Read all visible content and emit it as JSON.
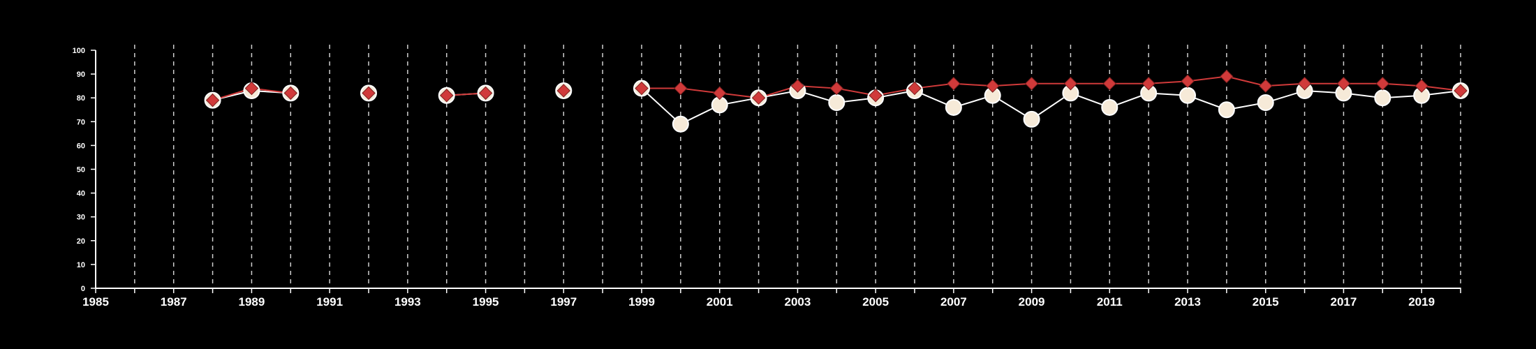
{
  "chart_data": {
    "type": "line",
    "title": "",
    "xlabel": "",
    "ylabel": "",
    "xlim": [
      1985,
      2020
    ],
    "ylim": [
      0,
      100
    ],
    "x_ticks": [
      1985,
      1986,
      1987,
      1988,
      1989,
      1990,
      1991,
      1992,
      1993,
      1994,
      1995,
      1996,
      1997,
      1998,
      1999,
      2000,
      2001,
      2002,
      2003,
      2004,
      2005,
      2006,
      2007,
      2008,
      2009,
      2010,
      2011,
      2012,
      2013,
      2014,
      2015,
      2016,
      2017,
      2018,
      2019,
      2020
    ],
    "x_tick_labels": [
      "1985",
      "1987",
      "1989",
      "1991",
      "1993",
      "1995",
      "1997",
      "1999",
      "2001",
      "2003",
      "2005",
      "2007",
      "2009",
      "2011",
      "2013",
      "2015",
      "2017",
      "2019"
    ],
    "y_ticks": [
      0,
      10,
      20,
      30,
      40,
      50,
      60,
      70,
      80,
      90,
      100
    ],
    "y_tick_labels": [
      "0",
      "10",
      "20",
      "30",
      "40",
      "50",
      "60",
      "70",
      "80",
      "90",
      "100"
    ],
    "grid": "vertical dashed",
    "background": "#000000",
    "series": [
      {
        "marker": "circle",
        "color": "#ffffff",
        "fill": "#f6ead8",
        "points": [
          [
            1988,
            79
          ],
          [
            1989,
            83
          ],
          [
            1990,
            82
          ],
          [
            1992,
            82
          ],
          [
            1994,
            81
          ],
          [
            1995,
            82
          ],
          [
            1997,
            83
          ],
          [
            1999,
            84
          ],
          [
            2000,
            69
          ],
          [
            2001,
            77
          ],
          [
            2002,
            80
          ],
          [
            2003,
            83
          ],
          [
            2004,
            78
          ],
          [
            2005,
            80
          ],
          [
            2006,
            83
          ],
          [
            2007,
            76
          ],
          [
            2008,
            81
          ],
          [
            2009,
            71
          ],
          [
            2010,
            82
          ],
          [
            2011,
            76
          ],
          [
            2012,
            82
          ],
          [
            2013,
            81
          ],
          [
            2014,
            75
          ],
          [
            2015,
            78
          ],
          [
            2016,
            83
          ],
          [
            2017,
            82
          ],
          [
            2018,
            80
          ],
          [
            2019,
            81
          ],
          [
            2020,
            83
          ]
        ]
      },
      {
        "marker": "diamond",
        "color": "#d03a3a",
        "points": [
          [
            1988,
            79
          ],
          [
            1989,
            84
          ],
          [
            1990,
            82
          ],
          [
            1992,
            82
          ],
          [
            1994,
            81
          ],
          [
            1995,
            82
          ],
          [
            1997,
            83
          ],
          [
            1999,
            84
          ],
          [
            2000,
            84
          ],
          [
            2001,
            82
          ],
          [
            2002,
            80
          ],
          [
            2003,
            85
          ],
          [
            2004,
            84
          ],
          [
            2005,
            81
          ],
          [
            2006,
            84
          ],
          [
            2007,
            86
          ],
          [
            2008,
            85
          ],
          [
            2009,
            86
          ],
          [
            2010,
            86
          ],
          [
            2011,
            86
          ],
          [
            2012,
            86
          ],
          [
            2013,
            87
          ],
          [
            2014,
            89
          ],
          [
            2015,
            85
          ],
          [
            2016,
            86
          ],
          [
            2017,
            86
          ],
          [
            2018,
            86
          ],
          [
            2019,
            85
          ],
          [
            2020,
            83
          ]
        ]
      }
    ]
  }
}
